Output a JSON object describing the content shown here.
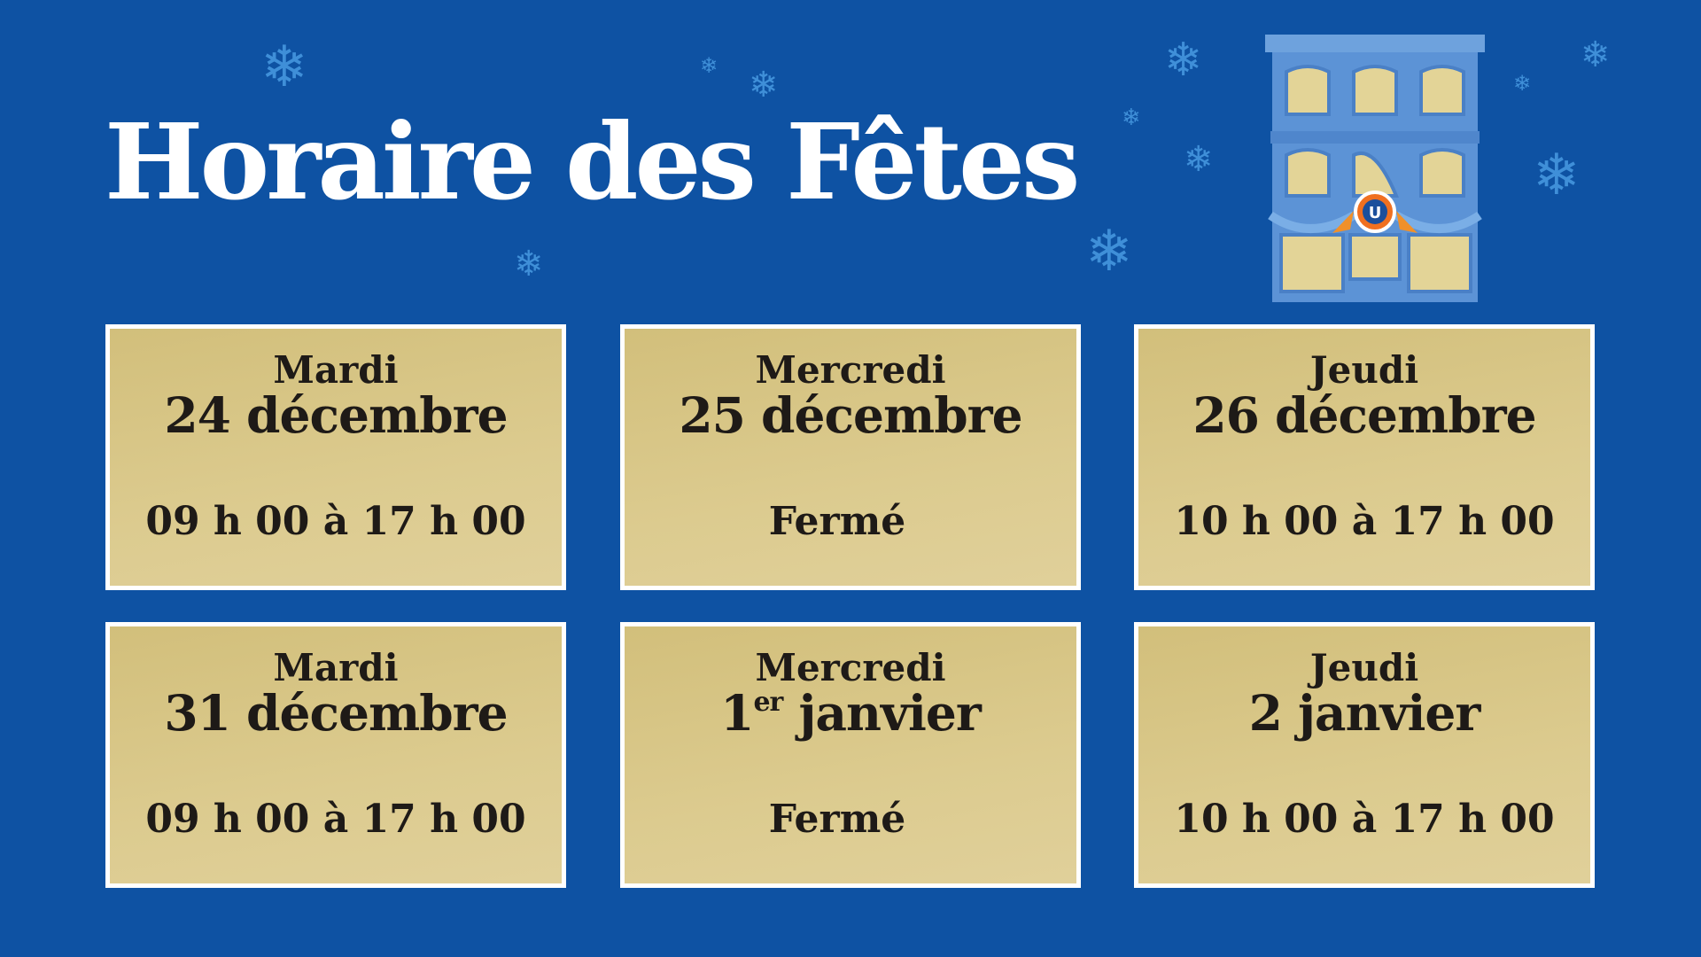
{
  "title": "Horaire des Fêtes",
  "decorations": {
    "snowflake_icon": "❄",
    "building_logo_letter": "U"
  },
  "colors": {
    "background": "#0e52a3",
    "card": "#d8c686",
    "card_border": "#ffffff",
    "text": "#1e1a17",
    "snowflake": "#3f8fd8"
  },
  "schedule": [
    {
      "day": "Mardi",
      "date": "24 décembre",
      "date_sup": "",
      "date_rest": "",
      "hours": "09 h 00 à 17 h 00"
    },
    {
      "day": "Mercredi",
      "date": "25 décembre",
      "date_sup": "",
      "date_rest": "",
      "hours": "Fermé"
    },
    {
      "day": "Jeudi",
      "date": "26 décembre",
      "date_sup": "",
      "date_rest": "",
      "hours": "10 h 00 à 17 h 00"
    },
    {
      "day": "Mardi",
      "date": "31 décembre",
      "date_sup": "",
      "date_rest": "",
      "hours": "09 h 00 à 17 h 00"
    },
    {
      "day": "Mercredi",
      "date": "1",
      "date_sup": "er",
      "date_rest": " janvier",
      "hours": "Fermé"
    },
    {
      "day": "Jeudi",
      "date": "2 janvier",
      "date_sup": "",
      "date_rest": "",
      "hours": "10 h 00 à 17 h 00"
    }
  ]
}
